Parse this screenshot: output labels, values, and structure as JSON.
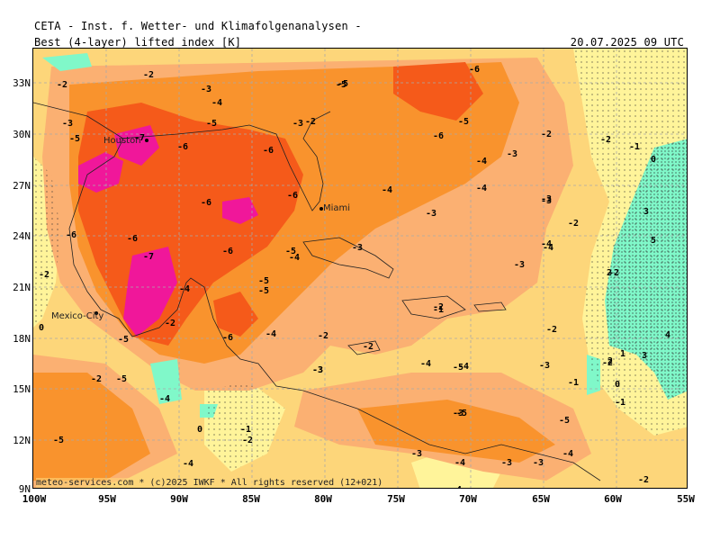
{
  "header": {
    "title": "CETA - Inst. f. Wetter- und Klimafolgenanalysen -",
    "subtitle": "Best (4-layer) lifted index [K]",
    "datetime": "20.07.2025 09 UTC"
  },
  "axes": {
    "lat_labels": [
      "33N",
      "30N",
      "27N",
      "24N",
      "21N",
      "18N",
      "15N",
      "12N",
      "9N"
    ],
    "lon_labels": [
      "100W",
      "95W",
      "90W",
      "85W",
      "80W",
      "75W",
      "70W",
      "65W",
      "60W",
      "55W"
    ]
  },
  "cities": [
    "Houston",
    "Miami",
    "Mexico-City"
  ],
  "footer": "meteo-services.com * (c)2025 IWKF * All rights reserved (12+021)",
  "colors": {
    "very_unstable": "#f0179a",
    "strong_unstable": "#f55a1a",
    "unstable": "#f9932d",
    "moderate": "#fbb072",
    "weak": "#fdd67a",
    "neutral": "#fff49a",
    "stable": "#80f8c9"
  },
  "contour_values": [
    {
      "v": "-2"
    },
    {
      "v": "-2"
    },
    {
      "v": "-3"
    },
    {
      "v": "-4"
    },
    {
      "v": "-3"
    },
    {
      "v": "-5"
    },
    {
      "v": "-7"
    },
    {
      "v": "-6"
    },
    {
      "v": "-5"
    },
    {
      "v": "-6"
    },
    {
      "v": "-5"
    },
    {
      "v": "-6"
    },
    {
      "v": "-3"
    },
    {
      "v": "-2"
    },
    {
      "v": "-5"
    },
    {
      "v": "-6"
    },
    {
      "v": "-4"
    },
    {
      "v": "-5"
    },
    {
      "v": "-4"
    },
    {
      "v": "-3"
    },
    {
      "v": "-2"
    },
    {
      "v": "-2"
    },
    {
      "v": "-1"
    },
    {
      "v": "0"
    },
    {
      "v": "-6"
    },
    {
      "v": "-6"
    },
    {
      "v": "-5"
    },
    {
      "v": "-4"
    },
    {
      "v": "-3"
    },
    {
      "v": "-4"
    },
    {
      "v": "-3"
    },
    {
      "v": "3"
    },
    {
      "v": "-6"
    },
    {
      "v": "-6"
    },
    {
      "v": "-7"
    },
    {
      "v": "-4"
    },
    {
      "v": "-5"
    },
    {
      "v": "-3"
    },
    {
      "v": "-2"
    },
    {
      "v": "-4"
    },
    {
      "v": "5"
    },
    {
      "v": "-2"
    },
    {
      "v": "-6"
    },
    {
      "v": "-3"
    },
    {
      "v": "-2"
    },
    {
      "v": "-3"
    },
    {
      "v": "2"
    },
    {
      "v": "0"
    },
    {
      "v": "-4"
    },
    {
      "v": "-5"
    },
    {
      "v": "-2"
    },
    {
      "v": "-1"
    },
    {
      "v": "-2"
    },
    {
      "v": "-6"
    },
    {
      "v": "-5"
    },
    {
      "v": "-4"
    },
    {
      "v": "-2"
    },
    {
      "v": "-2"
    },
    {
      "v": "-2"
    },
    {
      "v": "4"
    },
    {
      "v": "-2"
    },
    {
      "v": "-4"
    },
    {
      "v": "-5"
    },
    {
      "v": "-3"
    },
    {
      "v": "-4"
    },
    {
      "v": "-3"
    },
    {
      "v": "-2"
    },
    {
      "v": "1"
    },
    {
      "v": "3"
    },
    {
      "v": "-5"
    },
    {
      "v": "-3"
    },
    {
      "v": "-4"
    },
    {
      "v": "-1"
    },
    {
      "v": "0"
    },
    {
      "v": "-1"
    },
    {
      "v": "2"
    },
    {
      "v": "-4"
    },
    {
      "v": "-5"
    },
    {
      "v": "0"
    },
    {
      "v": "-1"
    },
    {
      "v": "-2"
    },
    {
      "v": "-5"
    },
    {
      "v": "-3"
    },
    {
      "v": "-4"
    },
    {
      "v": "-3"
    },
    {
      "v": "-4"
    },
    {
      "v": "-5"
    },
    {
      "v": "-3"
    },
    {
      "v": "-3"
    },
    {
      "v": "-4"
    },
    {
      "v": "-2"
    }
  ]
}
